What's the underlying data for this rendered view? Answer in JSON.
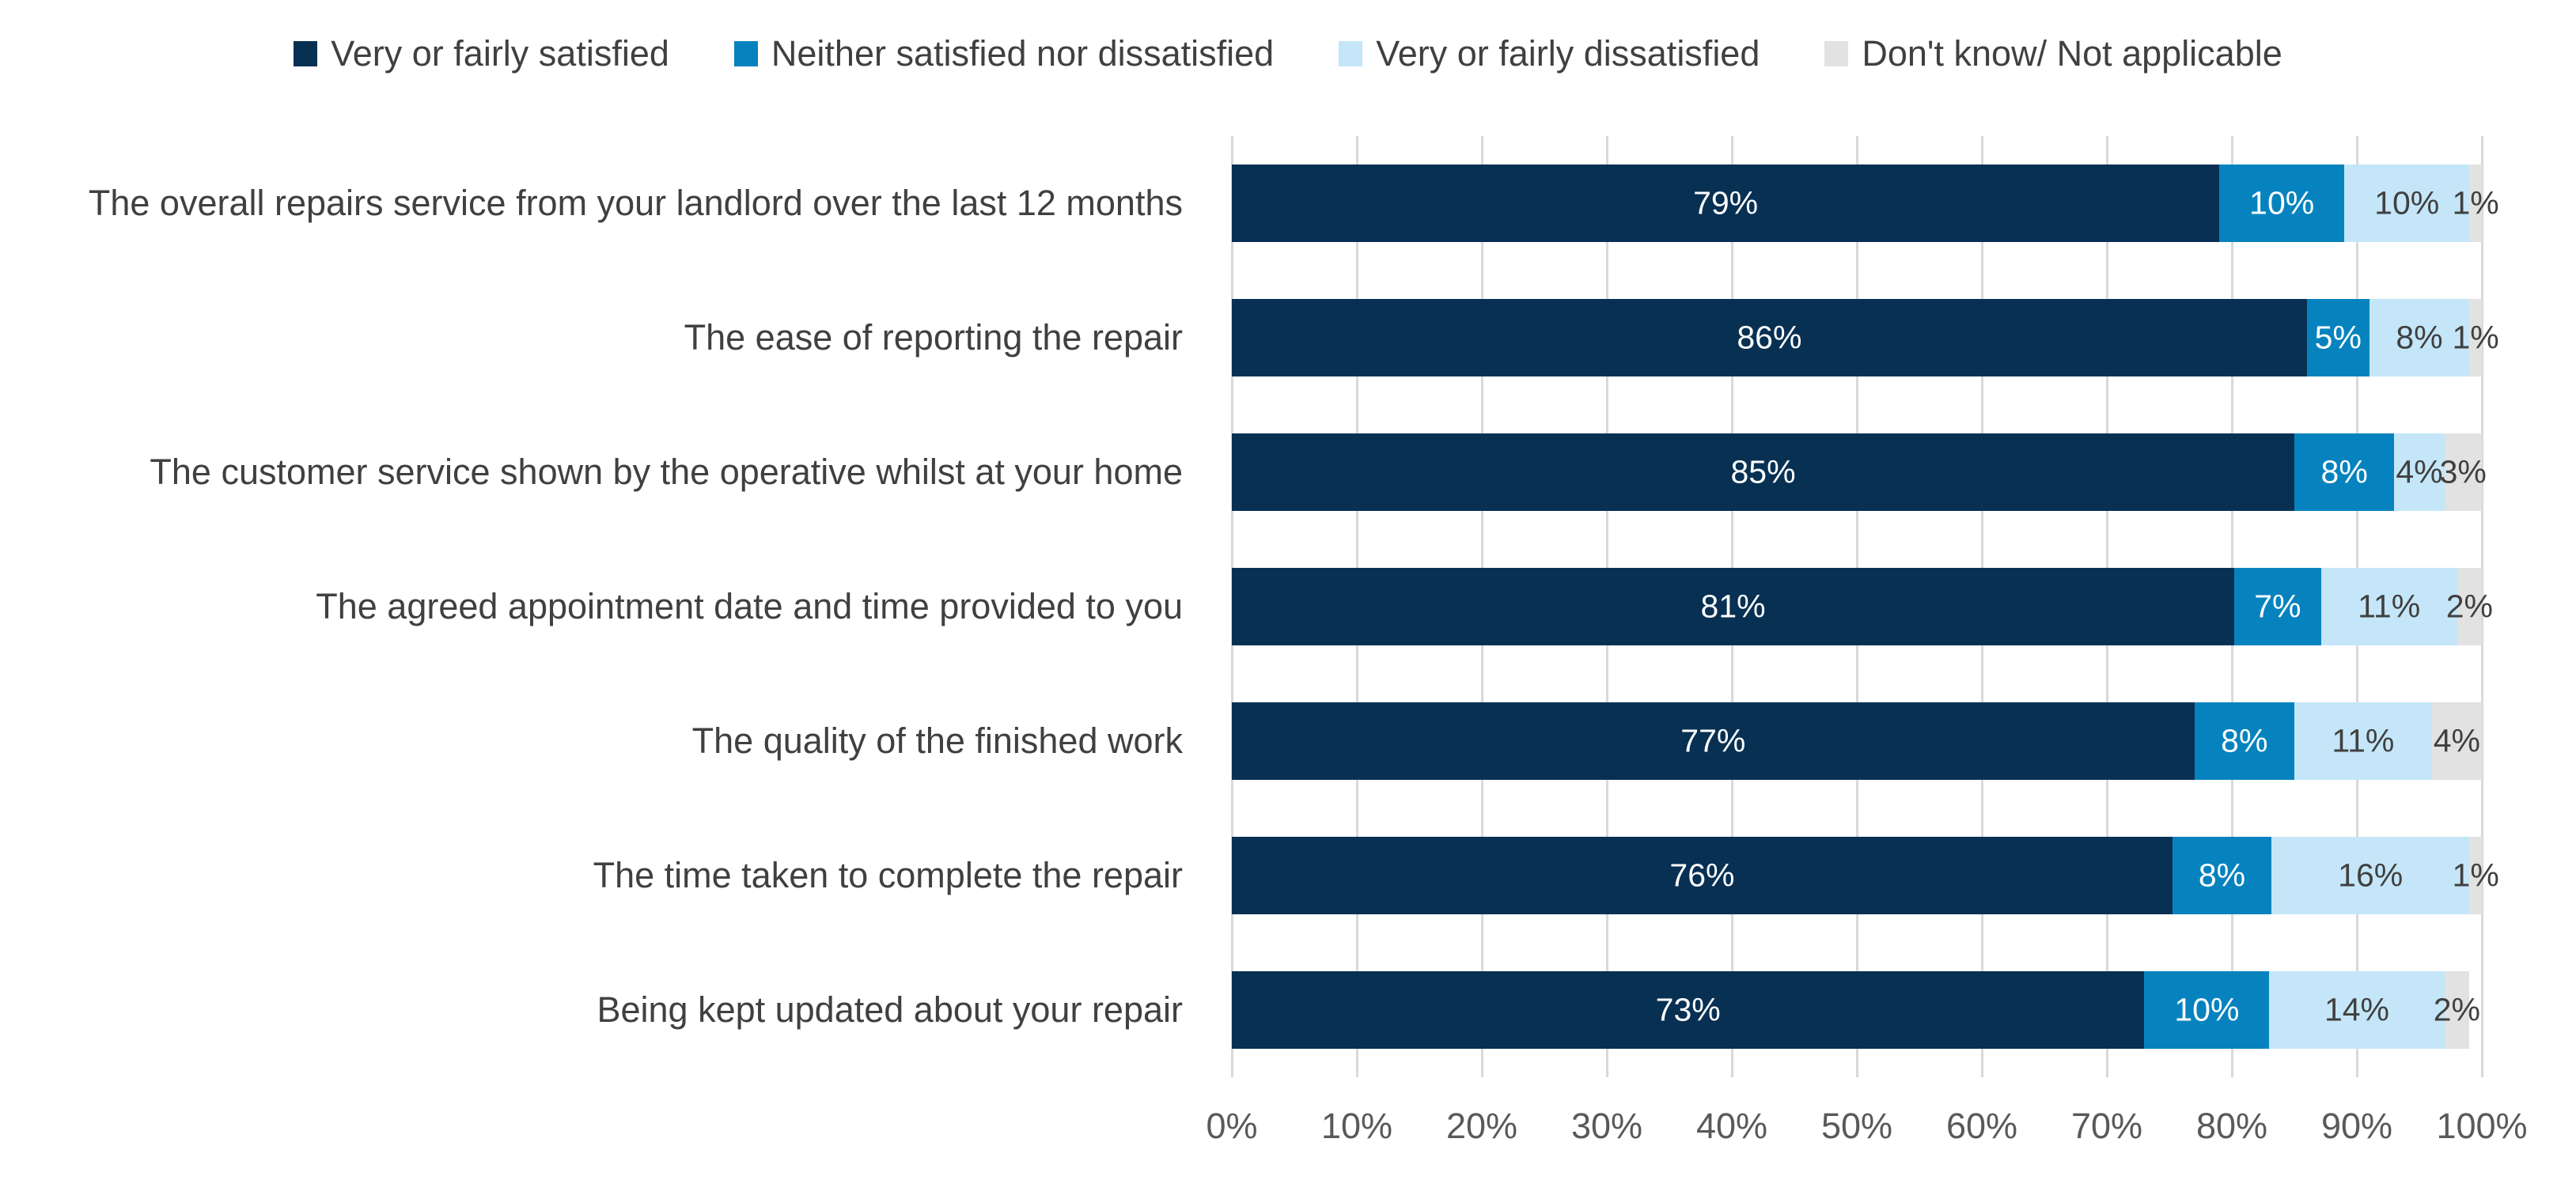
{
  "chart_data": {
    "type": "bar",
    "orientation": "horizontal",
    "stacked": true,
    "grid": true,
    "legend_position": "top",
    "xlim": [
      0,
      100
    ],
    "x_ticks": [
      "0%",
      "10%",
      "20%",
      "30%",
      "40%",
      "50%",
      "60%",
      "70%",
      "80%",
      "90%",
      "100%"
    ],
    "categories": [
      "The overall repairs service from your landlord over the last 12 months",
      "The ease of reporting the repair",
      "The customer service shown by the operative whilst at your home",
      "The agreed appointment date and time provided to you",
      "The quality of the finished work",
      "The time taken to complete the repair",
      "Being kept updated about your repair"
    ],
    "series": [
      {
        "name": "Very or fairly satisfied",
        "color": "#083053",
        "label_color": "#ffffff",
        "values": [
          79,
          86,
          85,
          81,
          77,
          76,
          73
        ],
        "labels": [
          "79%",
          "86%",
          "85%",
          "81%",
          "77%",
          "76%",
          "73%"
        ]
      },
      {
        "name": "Neither satisfied nor dissatisfied",
        "color": "#0683be",
        "label_color": "#ffffff",
        "values": [
          10,
          5,
          8,
          7,
          8,
          8,
          10
        ],
        "labels": [
          "10%",
          "5%",
          "8%",
          "7%",
          "8%",
          "8%",
          "10%"
        ]
      },
      {
        "name": "Very or fairly dissatisfied",
        "color": "#c4e6f8",
        "label_color": "#404040",
        "values": [
          10,
          8,
          4,
          11,
          11,
          16,
          14
        ],
        "labels": [
          "10%",
          "8%",
          "4%",
          "11%",
          "11%",
          "16%",
          "14%"
        ]
      },
      {
        "name": "Don't know/ Not applicable",
        "color": "#e2e2e2",
        "label_color": "#404040",
        "values": [
          1,
          1,
          3,
          2,
          4,
          1,
          2
        ],
        "labels": [
          "1%",
          "1%",
          "3%",
          "2%",
          "4%",
          "1%",
          "2%"
        ]
      }
    ],
    "gridline_color": "#d9d9d9",
    "axis_text_color": "#595959",
    "label_text_color": "#404040"
  }
}
